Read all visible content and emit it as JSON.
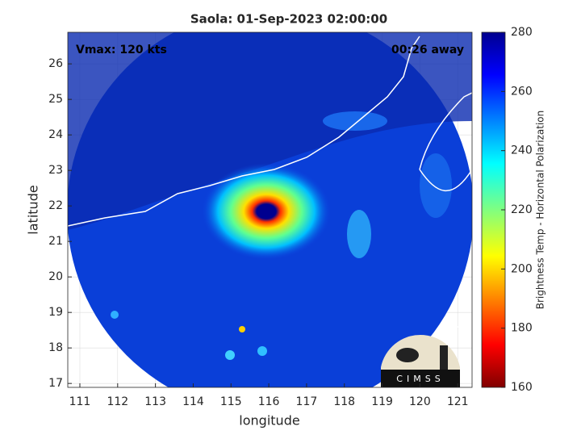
{
  "chart_data": {
    "type": "image",
    "title": "Saola: 01-Sep-2023 02:00:00",
    "annotations": [
      "Vmax: 120 kts",
      "00:26 away"
    ],
    "x_label": "longitude",
    "y_label": "latitude",
    "xlim": [
      110.68,
      121.38
    ],
    "ylim": [
      16.89,
      26.89
    ],
    "xticks": [
      111,
      112,
      113,
      114,
      115,
      116,
      117,
      118,
      119,
      120,
      121
    ],
    "yticks": [
      17,
      18,
      19,
      20,
      21,
      22,
      23,
      24,
      25,
      26
    ],
    "grid": true,
    "colorbar": {
      "label": "Brightness Temp - Horizontal Polarization",
      "lim": [
        160,
        280
      ],
      "ticks": [
        160,
        180,
        200,
        220,
        240,
        260,
        280
      ]
    },
    "logo": "CIMSS"
  }
}
